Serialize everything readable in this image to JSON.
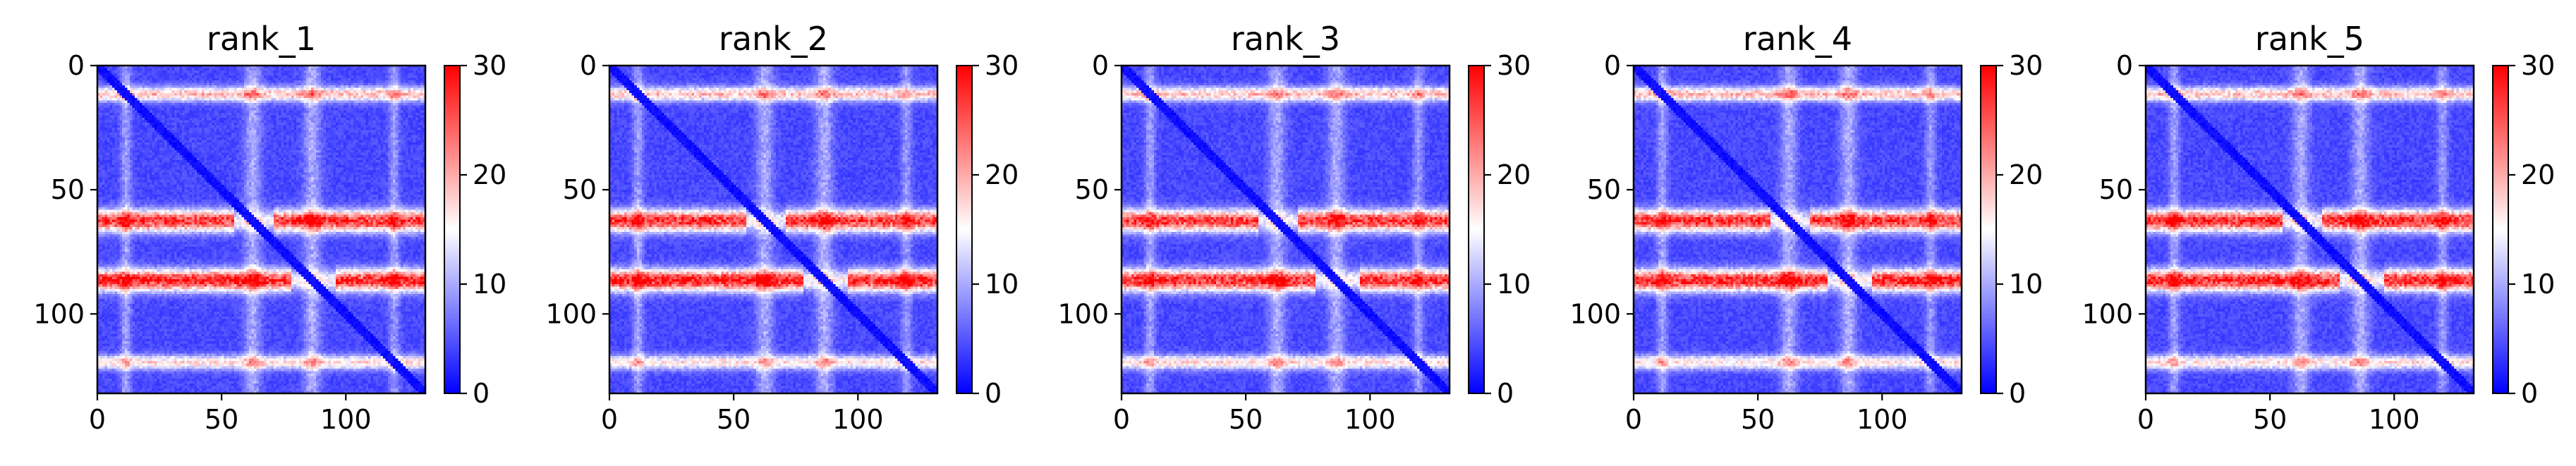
{
  "chart_data": [
    {
      "type": "heatmap",
      "title": "rank_1",
      "xlabel": "",
      "ylabel": "",
      "xlim": [
        0,
        132
      ],
      "ylim": [
        132,
        0
      ],
      "xticks": [
        "0",
        "50",
        "100"
      ],
      "yticks": [
        "0",
        "50",
        "100"
      ],
      "colorbar": {
        "ticks": [
          "0",
          "10",
          "20",
          "30"
        ],
        "range": [
          0,
          30
        ],
        "colors": [
          "#0000ff",
          "#ffffff",
          "#ff0000"
        ]
      },
      "bands": [
        {
          "row": 11,
          "width": 2.0,
          "value": 15.5
        },
        {
          "row": 62,
          "width": 3.0,
          "value": 24.0
        },
        {
          "row": 86,
          "width": 3.0,
          "value": 25.0
        },
        {
          "row": 119,
          "width": 2.0,
          "value": 13.5
        }
      ],
      "cross_bands": [
        {
          "col": 11,
          "width": 1.5,
          "value": 12.0
        },
        {
          "col": 62,
          "width": 2.5,
          "value": 13.0
        },
        {
          "col": 86,
          "width": 2.5,
          "value": 13.5
        },
        {
          "col": 119,
          "width": 1.5,
          "value": 11.0
        }
      ],
      "gaps": [
        {
          "row": 62,
          "from": 55,
          "to": 70
        },
        {
          "row": 86,
          "from": 78,
          "to": 95
        }
      ],
      "background": 3.0,
      "diagonal": 0.0
    },
    {
      "type": "heatmap",
      "title": "rank_2",
      "xlabel": "",
      "ylabel": "",
      "xlim": [
        0,
        132
      ],
      "ylim": [
        132,
        0
      ],
      "xticks": [
        "0",
        "50",
        "100"
      ],
      "yticks": [
        "0",
        "50",
        "100"
      ],
      "colorbar": {
        "ticks": [
          "0",
          "10",
          "20",
          "30"
        ],
        "range": [
          0,
          30
        ],
        "colors": [
          "#0000ff",
          "#ffffff",
          "#ff0000"
        ]
      },
      "bands": [
        {
          "row": 11,
          "width": 2.0,
          "value": 15.0
        },
        {
          "row": 62,
          "width": 3.0,
          "value": 24.0
        },
        {
          "row": 86,
          "width": 3.0,
          "value": 25.5
        },
        {
          "row": 119,
          "width": 2.0,
          "value": 13.0
        }
      ],
      "cross_bands": [
        {
          "col": 11,
          "width": 1.5,
          "value": 12.0
        },
        {
          "col": 62,
          "width": 2.5,
          "value": 13.0
        },
        {
          "col": 86,
          "width": 2.5,
          "value": 13.5
        },
        {
          "col": 119,
          "width": 1.5,
          "value": 11.0
        }
      ],
      "gaps": [
        {
          "row": 62,
          "from": 55,
          "to": 70
        },
        {
          "row": 86,
          "from": 78,
          "to": 95
        }
      ],
      "background": 3.0,
      "diagonal": 0.0
    },
    {
      "type": "heatmap",
      "title": "rank_3",
      "xlabel": "",
      "ylabel": "",
      "xlim": [
        0,
        132
      ],
      "ylim": [
        132,
        0
      ],
      "xticks": [
        "0",
        "50",
        "100"
      ],
      "yticks": [
        "0",
        "50",
        "100"
      ],
      "colorbar": {
        "ticks": [
          "0",
          "10",
          "20",
          "30"
        ],
        "range": [
          0,
          30
        ],
        "colors": [
          "#0000ff",
          "#ffffff",
          "#ff0000"
        ]
      },
      "bands": [
        {
          "row": 11,
          "width": 2.0,
          "value": 15.0
        },
        {
          "row": 62,
          "width": 3.0,
          "value": 23.5
        },
        {
          "row": 86,
          "width": 3.0,
          "value": 24.5
        },
        {
          "row": 119,
          "width": 2.0,
          "value": 13.5
        }
      ],
      "cross_bands": [
        {
          "col": 11,
          "width": 1.5,
          "value": 12.0
        },
        {
          "col": 62,
          "width": 2.5,
          "value": 13.0
        },
        {
          "col": 86,
          "width": 2.5,
          "value": 13.0
        },
        {
          "col": 119,
          "width": 1.5,
          "value": 11.0
        }
      ],
      "gaps": [
        {
          "row": 62,
          "from": 55,
          "to": 70
        },
        {
          "row": 86,
          "from": 78,
          "to": 95
        }
      ],
      "background": 3.0,
      "diagonal": 0.0
    },
    {
      "type": "heatmap",
      "title": "rank_4",
      "xlabel": "",
      "ylabel": "",
      "xlim": [
        0,
        132
      ],
      "ylim": [
        132,
        0
      ],
      "xticks": [
        "0",
        "50",
        "100"
      ],
      "yticks": [
        "0",
        "50",
        "100"
      ],
      "colorbar": {
        "ticks": [
          "0",
          "10",
          "20",
          "30"
        ],
        "range": [
          0,
          30
        ],
        "colors": [
          "#0000ff",
          "#ffffff",
          "#ff0000"
        ]
      },
      "bands": [
        {
          "row": 11,
          "width": 2.0,
          "value": 15.5
        },
        {
          "row": 62,
          "width": 3.0,
          "value": 24.0
        },
        {
          "row": 86,
          "width": 3.0,
          "value": 25.0
        },
        {
          "row": 119,
          "width": 2.0,
          "value": 13.0
        }
      ],
      "cross_bands": [
        {
          "col": 11,
          "width": 1.5,
          "value": 12.0
        },
        {
          "col": 62,
          "width": 2.5,
          "value": 13.0
        },
        {
          "col": 86,
          "width": 2.5,
          "value": 13.5
        },
        {
          "col": 119,
          "width": 1.5,
          "value": 11.0
        }
      ],
      "gaps": [
        {
          "row": 62,
          "from": 55,
          "to": 70
        },
        {
          "row": 86,
          "from": 78,
          "to": 95
        }
      ],
      "background": 3.0,
      "diagonal": 0.0
    },
    {
      "type": "heatmap",
      "title": "rank_5",
      "xlabel": "",
      "ylabel": "",
      "xlim": [
        0,
        132
      ],
      "ylim": [
        132,
        0
      ],
      "xticks": [
        "0",
        "50",
        "100"
      ],
      "yticks": [
        "0",
        "50",
        "100"
      ],
      "colorbar": {
        "ticks": [
          "0",
          "10",
          "20",
          "30"
        ],
        "range": [
          0,
          30
        ],
        "colors": [
          "#0000ff",
          "#ffffff",
          "#ff0000"
        ]
      },
      "bands": [
        {
          "row": 11,
          "width": 2.0,
          "value": 15.0
        },
        {
          "row": 62,
          "width": 3.0,
          "value": 24.5
        },
        {
          "row": 86,
          "width": 3.0,
          "value": 25.0
        },
        {
          "row": 119,
          "width": 2.0,
          "value": 13.5
        }
      ],
      "cross_bands": [
        {
          "col": 11,
          "width": 1.5,
          "value": 12.0
        },
        {
          "col": 62,
          "width": 2.5,
          "value": 13.0
        },
        {
          "col": 86,
          "width": 2.5,
          "value": 13.5
        },
        {
          "col": 119,
          "width": 1.5,
          "value": 11.0
        }
      ],
      "gaps": [
        {
          "row": 62,
          "from": 55,
          "to": 70
        },
        {
          "row": 86,
          "from": 78,
          "to": 95
        }
      ],
      "background": 3.0,
      "diagonal": 0.0
    }
  ]
}
